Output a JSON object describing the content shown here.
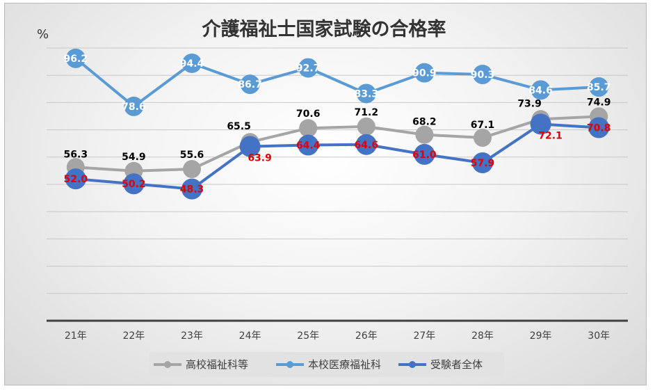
{
  "chart_data": {
    "type": "line",
    "title": "介護福祉士国家試験の合格率",
    "ylabel": "%",
    "xlabel": "",
    "categories": [
      "21年",
      "22年",
      "23年",
      "24年",
      "25年",
      "26年",
      "27年",
      "28年",
      "29年",
      "30年"
    ],
    "ylim": [
      0,
      100
    ],
    "grid": true,
    "legend_position": "bottom",
    "series": [
      {
        "name": "高校福祉科等",
        "color": "#a5a5a5",
        "label_color": "#000000",
        "values": [
          56.3,
          54.9,
          55.6,
          65.5,
          70.6,
          71.2,
          68.2,
          67.1,
          73.9,
          74.9
        ],
        "labels": [
          "56.3",
          "54.9",
          "55.6",
          "65.5",
          "70.6",
          "71.2",
          "68.2",
          "67.1",
          "73.9",
          "74.9"
        ]
      },
      {
        "name": "本校医療福祉科",
        "color": "#5b9bd5",
        "label_color": "#ffffff",
        "values": [
          96.2,
          78.6,
          94.4,
          86.7,
          92.7,
          83.3,
          90.9,
          90.3,
          84.6,
          85.7
        ],
        "labels": [
          "96.2",
          "78.6",
          "94.4",
          "86.7",
          "92.7",
          "83.3",
          "90.9",
          "90.3",
          "84.6",
          "85.7"
        ]
      },
      {
        "name": "受験者全体",
        "color": "#4472c4",
        "label_color": "#e00000",
        "values": [
          52.0,
          50.2,
          48.3,
          63.9,
          64.4,
          64.6,
          61.0,
          57.9,
          72.1,
          70.8
        ],
        "labels": [
          "52.0",
          "50.2",
          "48.3",
          "63.9",
          "64.4",
          "64.6",
          "61.0",
          "57.9",
          "72.1",
          "70.8"
        ]
      }
    ]
  }
}
